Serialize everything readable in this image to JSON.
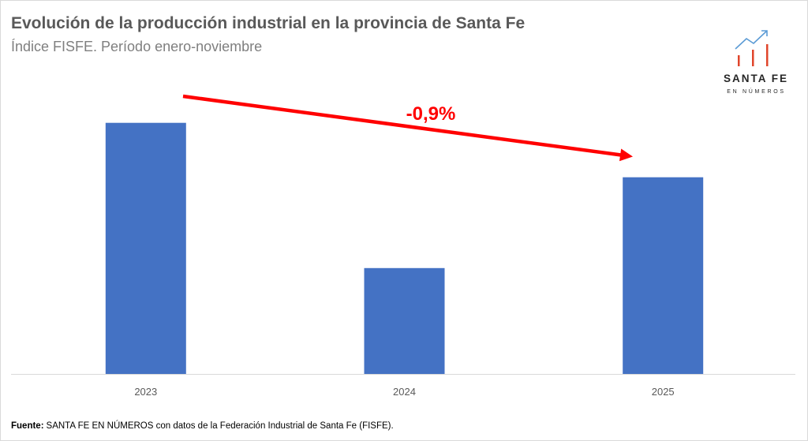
{
  "chart_data": {
    "type": "bar",
    "title": "Evolución de la producción industrial en la provincia de Santa Fe",
    "subtitle": "Índice FISFE. Período enero-noviembre",
    "categories": [
      "2023",
      "2024",
      "2025"
    ],
    "values": [
      100,
      97.6,
      99.1
    ],
    "xlabel": "",
    "ylabel": "",
    "ylim": [
      95.85,
      100.7
    ],
    "y_axis_shown": false,
    "grid": false,
    "legend": "none",
    "colors": {
      "bars": "#4472C4",
      "annotation": "#FF0000",
      "baseline": "#D9D9D9"
    },
    "annotations": [
      {
        "text": "-0,9%",
        "from": "2023",
        "to": "2025"
      }
    ]
  },
  "logo": {
    "icon": "rising-chart-icon",
    "line1": "SANTA FE",
    "line2": "EN NÚMEROS",
    "colors": {
      "bars": "#E0452B",
      "arrow": "#5B9BD5"
    }
  },
  "footer": {
    "source_label": "Fuente:",
    "source_text": "SANTA FE EN NÚMEROS con datos de la Federación Industrial de Santa Fe (FISFE)."
  }
}
